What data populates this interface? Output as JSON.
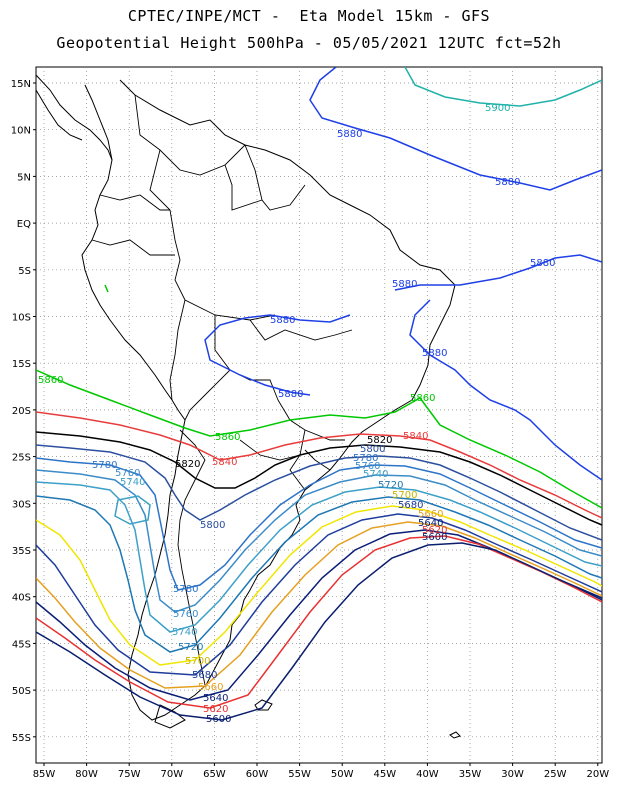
{
  "header": {
    "line1": "CPTEC/INPE/MCT -  Eta Model 15km - GFS",
    "line2": "Geopotential Height 500hPa - 05/05/2021 12UTC fct=52h"
  },
  "map": {
    "lat_labels": [
      "15N",
      "10N",
      "5N",
      "EQ",
      "5S",
      "10S",
      "15S",
      "20S",
      "25S",
      "30S",
      "35S",
      "40S",
      "45S",
      "50S",
      "55S"
    ],
    "lon_labels": [
      "85W",
      "80W",
      "75W",
      "70W",
      "65W",
      "60W",
      "55W",
      "50W",
      "45W",
      "40W",
      "35W",
      "30W",
      "25W",
      "20W"
    ]
  },
  "chart_data": {
    "type": "contour",
    "title": "Geopotential Height 500hPa - 05/05/2021 12UTC fct=52h",
    "variable": "Geopotential Height 500hPa",
    "x_range": [
      "85W",
      "20W"
    ],
    "y_range": [
      "57S",
      "17N"
    ],
    "levels": [
      {
        "value": "5900",
        "color": "#20b2aa"
      },
      {
        "value": "5880",
        "color": "#1e40e6"
      },
      {
        "value": "5860",
        "color": "#00c800"
      },
      {
        "value": "5840",
        "color": "#e83c3c"
      },
      {
        "value": "5820",
        "color": "#000000"
      },
      {
        "value": "5800",
        "color": "#2b4f9e"
      },
      {
        "value": "5780",
        "color": "#2d74c8"
      },
      {
        "value": "5760",
        "color": "#3c8cc8"
      },
      {
        "value": "5740",
        "color": "#3ca0c8"
      },
      {
        "value": "5720",
        "color": "#1e78b4"
      },
      {
        "value": "5700",
        "color": "#f0e600"
      },
      {
        "value": "5680",
        "color": "#1e3c9c"
      },
      {
        "value": "5660",
        "color": "#e6a020"
      },
      {
        "value": "5640",
        "color": "#0a1e78"
      },
      {
        "value": "5620",
        "color": "#e83232"
      },
      {
        "value": "5600",
        "color": "#0a1e6e"
      }
    ]
  }
}
